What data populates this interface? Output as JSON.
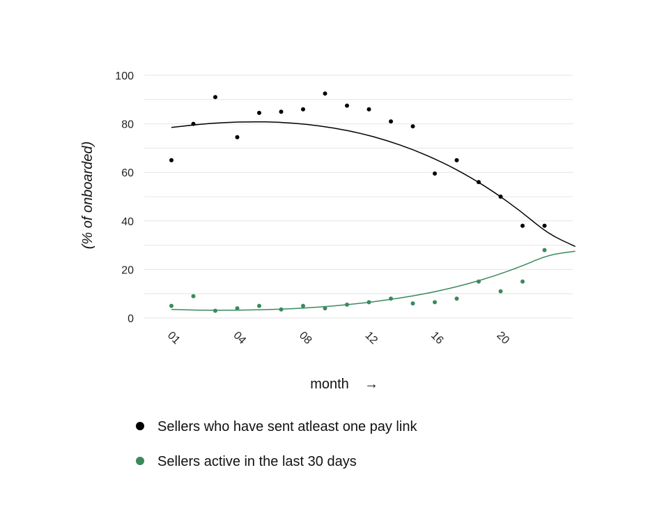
{
  "chart_data": {
    "type": "scatter",
    "title": "",
    "xlabel": "month",
    "xlabel_arrow": "→",
    "ylabel": "(% of onboarded)",
    "ylim": [
      0,
      100
    ],
    "yticks": [
      0,
      20,
      40,
      60,
      80,
      100
    ],
    "xlim": [
      1,
      24
    ],
    "xticks": [
      {
        "value": 1,
        "label": "01"
      },
      {
        "value": 4,
        "label": "04"
      },
      {
        "value": 7,
        "label": "08"
      },
      {
        "value": 10,
        "label": "12"
      },
      {
        "value": 13,
        "label": "16"
      },
      {
        "value": 16,
        "label": "20"
      }
    ],
    "grid": true,
    "legend_position": "bottom",
    "series": [
      {
        "name": "Sellers who have sent atleast one pay link",
        "color": "#000000",
        "trendline": "polynomial",
        "x": [
          1,
          2,
          3,
          4,
          5,
          6,
          7,
          8,
          9,
          10,
          11,
          12,
          13,
          14,
          15,
          16,
          17,
          18
        ],
        "y": [
          65,
          80,
          91,
          74.5,
          84.5,
          85,
          86,
          92.5,
          87.5,
          86,
          81,
          79,
          59.5,
          65,
          56,
          50,
          38,
          38
        ],
        "trend_y": [
          78.5,
          79.8,
          80.6,
          80.9,
          80.7,
          79.9,
          78.4,
          76.2,
          73.2,
          69.3,
          64.5,
          58.7,
          51.8,
          43.8,
          34.6,
          29.5
        ]
      },
      {
        "name": "Sellers active in the last 30 days",
        "color": "#3a8a5c",
        "trendline": "polynomial",
        "x": [
          1,
          2,
          3,
          4,
          5,
          6,
          7,
          8,
          9,
          10,
          11,
          12,
          13,
          14,
          15,
          16,
          17,
          18
        ],
        "y": [
          5,
          9,
          3,
          4,
          5,
          3.5,
          5,
          4,
          5.5,
          6.5,
          8,
          6,
          6.5,
          8,
          15,
          11,
          15,
          28
        ],
        "trend_y": [
          3.5,
          3.2,
          3.2,
          3.3,
          3.6,
          4.1,
          4.9,
          6,
          7.4,
          9.1,
          11.3,
          14,
          17.3,
          21.3,
          26,
          27.5
        ]
      }
    ]
  }
}
